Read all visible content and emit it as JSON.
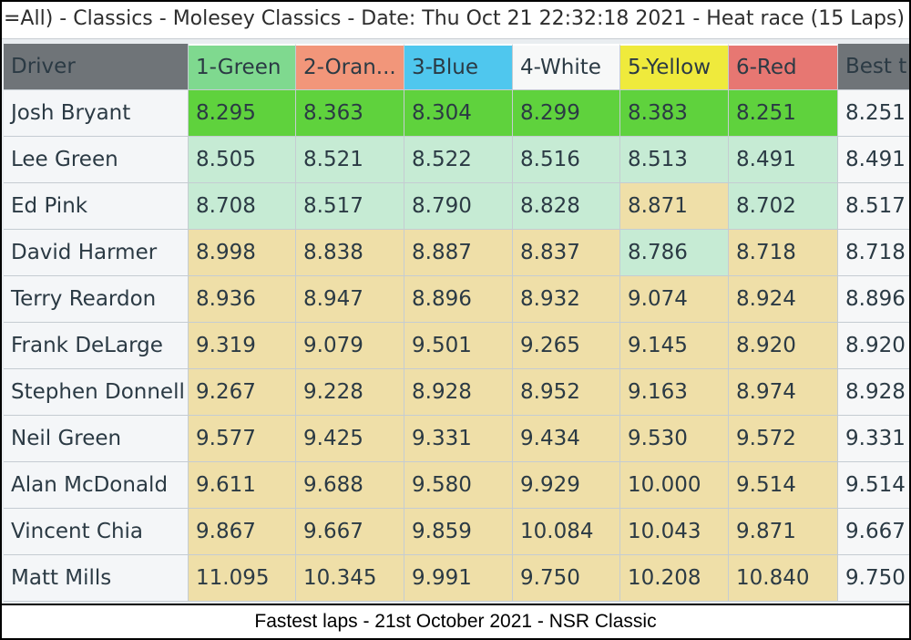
{
  "window": {
    "title": "=All) - Classics - Molesey Classics - Date: Thu Oct 21 22:32:18 2021 - Heat race (15 Laps)"
  },
  "table": {
    "driver_header": "Driver",
    "best_header": "Best t",
    "lanes": [
      {
        "label": "1-Green",
        "color": "#7fd98f"
      },
      {
        "label": "2-Oran...",
        "color": "#f2967a"
      },
      {
        "label": "3-Blue",
        "color": "#4fc7ee"
      },
      {
        "label": "4-White",
        "color": "#f7f8f8"
      },
      {
        "label": "5-Yellow",
        "color": "#efea3c"
      },
      {
        "label": "6-Red",
        "color": "#e77772"
      }
    ],
    "rows": [
      {
        "driver": "Josh Bryant",
        "times": [
          "8.295",
          "8.363",
          "8.304",
          "8.299",
          "8.383",
          "8.251"
        ],
        "best": "8.251",
        "highlight": [
          "top",
          "top",
          "top",
          "top",
          "top",
          "top"
        ]
      },
      {
        "driver": "Lee Green",
        "times": [
          "8.505",
          "8.521",
          "8.522",
          "8.516",
          "8.513",
          "8.491"
        ],
        "best": "8.491",
        "highlight": [
          "green",
          "green",
          "green",
          "green",
          "green",
          "green"
        ]
      },
      {
        "driver": "Ed Pink",
        "times": [
          "8.708",
          "8.517",
          "8.790",
          "8.828",
          "8.871",
          "8.702"
        ],
        "best": "8.517",
        "highlight": [
          "green",
          "green",
          "green",
          "green",
          "gold",
          "green"
        ]
      },
      {
        "driver": "David Harmer",
        "times": [
          "8.998",
          "8.838",
          "8.887",
          "8.837",
          "8.786",
          "8.718"
        ],
        "best": "8.718",
        "highlight": [
          "gold",
          "gold",
          "gold",
          "gold",
          "green",
          "gold"
        ]
      },
      {
        "driver": "Terry Reardon",
        "times": [
          "8.936",
          "8.947",
          "8.896",
          "8.932",
          "9.074",
          "8.924"
        ],
        "best": "8.896",
        "highlight": [
          "gold",
          "gold",
          "gold",
          "gold",
          "gold",
          "gold"
        ]
      },
      {
        "driver": "Frank DeLarge",
        "times": [
          "9.319",
          "9.079",
          "9.501",
          "9.265",
          "9.145",
          "8.920"
        ],
        "best": "8.920",
        "highlight": [
          "gold",
          "gold",
          "gold",
          "gold",
          "gold",
          "gold"
        ]
      },
      {
        "driver": "Stephen Donnell",
        "times": [
          "9.267",
          "9.228",
          "8.928",
          "8.952",
          "9.163",
          "8.974"
        ],
        "best": "8.928",
        "highlight": [
          "gold",
          "gold",
          "gold",
          "gold",
          "gold",
          "gold"
        ]
      },
      {
        "driver": "Neil Green",
        "times": [
          "9.577",
          "9.425",
          "9.331",
          "9.434",
          "9.530",
          "9.572"
        ],
        "best": "9.331",
        "highlight": [
          "gold",
          "gold",
          "gold",
          "gold",
          "gold",
          "gold"
        ]
      },
      {
        "driver": "Alan McDonald",
        "times": [
          "9.611",
          "9.688",
          "9.580",
          "9.929",
          "10.000",
          "9.514"
        ],
        "best": "9.514",
        "highlight": [
          "gold",
          "gold",
          "gold",
          "gold",
          "gold",
          "gold"
        ]
      },
      {
        "driver": "Vincent Chia",
        "times": [
          "9.867",
          "9.667",
          "9.859",
          "10.084",
          "10.043",
          "9.871"
        ],
        "best": "9.667",
        "highlight": [
          "gold",
          "gold",
          "gold",
          "gold",
          "gold",
          "gold"
        ]
      },
      {
        "driver": "Matt Mills",
        "times": [
          "11.095",
          "10.345",
          "9.991",
          "9.750",
          "10.208",
          "10.840"
        ],
        "best": "9.750",
        "highlight": [
          "gold",
          "gold",
          "gold",
          "gold",
          "gold",
          "gold"
        ]
      }
    ]
  },
  "caption": "Fastest laps - 21st October 2021 - NSR Classic"
}
